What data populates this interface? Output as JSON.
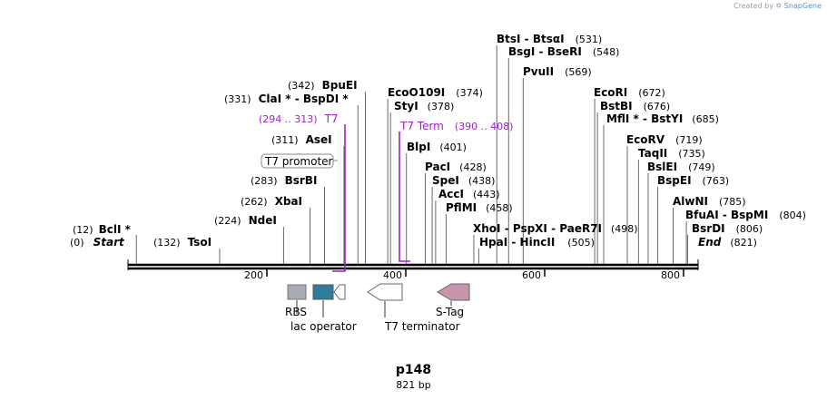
{
  "credit": {
    "prefix": "Created by",
    "brand": "SnapGene"
  },
  "plasmid": {
    "name": "p148",
    "length_label": "821 bp",
    "length": 821
  },
  "ruler": {
    "ticks": [
      200,
      400,
      600,
      800
    ]
  },
  "sites": [
    {
      "id": "bcli",
      "name": "BclI",
      "pos": 12,
      "pos_label": "(12)",
      "star": true
    },
    {
      "id": "start",
      "name": "Start",
      "pos": 0,
      "pos_label": "(0)",
      "special": "start"
    },
    {
      "id": "tsoi",
      "name": "TsoI",
      "pos": 132,
      "pos_label": "(132)"
    },
    {
      "id": "ndei",
      "name": "NdeI",
      "pos": 224,
      "pos_label": "(224)"
    },
    {
      "id": "xbai",
      "name": "XbaI",
      "pos": 262,
      "pos_label": "(262)"
    },
    {
      "id": "bsrbi",
      "name": "BsrBI",
      "pos": 283,
      "pos_label": "(283)"
    },
    {
      "id": "asei",
      "name": "AseI",
      "pos": 311,
      "pos_label": "(311)"
    },
    {
      "id": "clai",
      "names": [
        "ClaI",
        "BspDI"
      ],
      "stars": [
        true,
        true
      ],
      "pos": 331,
      "pos_label": "(331)"
    },
    {
      "id": "bpuei",
      "name": "BpuEI",
      "pos": 342,
      "pos_label": "(342)"
    },
    {
      "id": "eco0109i",
      "name": "EcoO109I",
      "pos": 374,
      "pos_label": "(374)"
    },
    {
      "id": "styi",
      "name": "StyI",
      "pos": 378,
      "pos_label": "(378)"
    },
    {
      "id": "blpi",
      "name": "BlpI",
      "pos": 401,
      "pos_label": "(401)"
    },
    {
      "id": "paci",
      "name": "PacI",
      "pos": 428,
      "pos_label": "(428)"
    },
    {
      "id": "spei",
      "name": "SpeI",
      "pos": 438,
      "pos_label": "(438)"
    },
    {
      "id": "acci",
      "name": "AccI",
      "pos": 443,
      "pos_label": "(443)"
    },
    {
      "id": "pflmi",
      "name": "PflMI",
      "pos": 458,
      "pos_label": "(458)"
    },
    {
      "id": "xhoi",
      "names": [
        "XhoI",
        "PspXI",
        "PaeR7I"
      ],
      "pos": 498,
      "pos_label": "(498)"
    },
    {
      "id": "hpai",
      "names": [
        "HpaI",
        "HincII"
      ],
      "pos": 505,
      "pos_label": "(505)"
    },
    {
      "id": "btsi",
      "names": [
        "BtsI",
        "BtsαI"
      ],
      "pos": 531,
      "pos_label": "(531)"
    },
    {
      "id": "bsgi",
      "names": [
        "BsgI",
        "BseRI"
      ],
      "pos": 548,
      "pos_label": "(548)"
    },
    {
      "id": "pvuii",
      "name": "PvuII",
      "pos": 569,
      "pos_label": "(569)"
    },
    {
      "id": "ecori",
      "name": "EcoRI",
      "pos": 672,
      "pos_label": "(672)"
    },
    {
      "id": "bstbi",
      "name": "BstBI",
      "pos": 676,
      "pos_label": "(676)"
    },
    {
      "id": "mfli",
      "names": [
        "MflI",
        "BstYI"
      ],
      "stars": [
        true,
        false
      ],
      "pos": 685,
      "pos_label": "(685)"
    },
    {
      "id": "ecorv",
      "name": "EcoRV",
      "pos": 719,
      "pos_label": "(719)"
    },
    {
      "id": "taqii",
      "name": "TaqII",
      "pos": 735,
      "pos_label": "(735)"
    },
    {
      "id": "bslei",
      "name": "BslEI",
      "pos": 749,
      "pos_label": "(749)"
    },
    {
      "id": "bspei",
      "name": "BspEI",
      "pos": 763,
      "pos_label": "(763)"
    },
    {
      "id": "alwni",
      "name": "AlwNI",
      "pos": 785,
      "pos_label": "(785)"
    },
    {
      "id": "bfuai",
      "names": [
        "BfuAI",
        "BspMI"
      ],
      "pos": 804,
      "pos_label": "(804)"
    },
    {
      "id": "bsrdi",
      "name": "BsrDI",
      "pos": 806,
      "pos_label": "(806)"
    },
    {
      "id": "end",
      "name": "End",
      "pos": 821,
      "pos_label": "(821)",
      "special": "end"
    }
  ],
  "primers": [
    {
      "id": "t7",
      "name": "T7",
      "range_label": "(294 .. 313)",
      "start": 294,
      "end": 313
    },
    {
      "id": "t7term",
      "name": "T7 Term",
      "range_label": "(390 .. 408)",
      "start": 390,
      "end": 408
    }
  ],
  "features": [
    {
      "id": "rbs",
      "name": "RBS",
      "color": "#a8aab4"
    },
    {
      "id": "lac-operator",
      "name": "lac operator",
      "color": "#2e7d9a"
    },
    {
      "id": "t7-promoter",
      "name": "T7 promoter",
      "color": "#ffffff"
    },
    {
      "id": "t7-terminator",
      "name": "T7 terminator",
      "color": "#ffffff"
    },
    {
      "id": "s-tag",
      "name": "S-Tag",
      "color": "#c995ad"
    }
  ],
  "colors": {
    "primer": "#a020c8",
    "backbone": "#000000"
  }
}
